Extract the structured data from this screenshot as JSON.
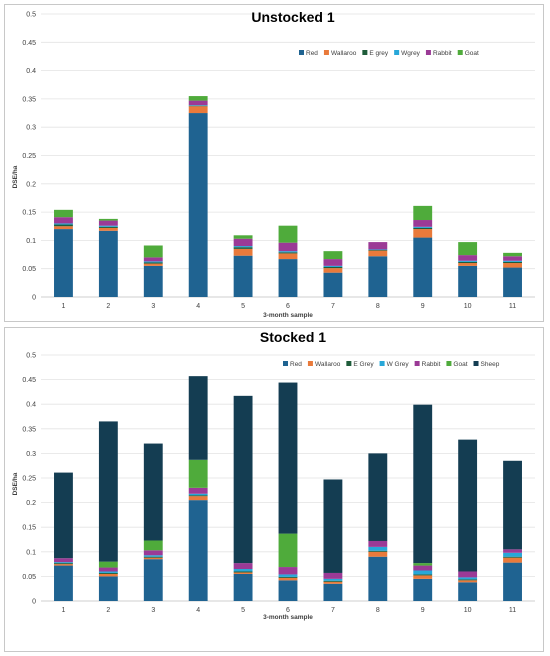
{
  "chart_data": [
    {
      "type": "bar",
      "stacked": true,
      "title": "Unstocked 1",
      "xlabel": "3-month sample",
      "ylabel": "DSE/ha",
      "ylim": [
        0,
        0.5
      ],
      "yticks": [
        "0",
        "0.05",
        "0.1",
        "0.15",
        "0.2",
        "0.25",
        "0.3",
        "0.35",
        "0.4",
        "0.45",
        "0.5"
      ],
      "grid": true,
      "legend_position": "top-right",
      "categories": [
        "1",
        "2",
        "3",
        "4",
        "5",
        "6",
        "7",
        "8",
        "9",
        "10",
        "11"
      ],
      "series": [
        {
          "name": "Red",
          "color": "#1f6391",
          "values": [
            0.12,
            0.117,
            0.055,
            0.325,
            0.073,
            0.067,
            0.043,
            0.072,
            0.105,
            0.055,
            0.052
          ]
        },
        {
          "name": "Wallaroo",
          "color": "#e97a3b",
          "values": [
            0.005,
            0.005,
            0.004,
            0.012,
            0.012,
            0.01,
            0.008,
            0.01,
            0.015,
            0.005,
            0.008
          ]
        },
        {
          "name": "E grey",
          "color": "#1e5c3a",
          "values": [
            0.003,
            0.002,
            0.002,
            0.001,
            0.003,
            0.002,
            0.002,
            0.001,
            0.002,
            0.002,
            0.002
          ]
        },
        {
          "name": "Wgrey",
          "color": "#27a7d8",
          "values": [
            0.002,
            0.002,
            0.002,
            0.001,
            0.002,
            0.002,
            0.002,
            0.001,
            0.002,
            0.002,
            0.002
          ]
        },
        {
          "name": "Rabbit",
          "color": "#9b3a96",
          "values": [
            0.011,
            0.009,
            0.007,
            0.008,
            0.013,
            0.015,
            0.012,
            0.013,
            0.012,
            0.01,
            0.008
          ]
        },
        {
          "name": "Goat",
          "color": "#4fab3b",
          "values": [
            0.013,
            0.003,
            0.021,
            0.008,
            0.006,
            0.03,
            0.014,
            0.0,
            0.025,
            0.023,
            0.006
          ]
        }
      ]
    },
    {
      "type": "bar",
      "stacked": true,
      "title": "Stocked 1",
      "xlabel": "3-month sample",
      "ylabel": "DSE/ha",
      "ylim": [
        0,
        0.5
      ],
      "yticks": [
        "0",
        "0.05",
        "0.1",
        "0.15",
        "0.2",
        "0.25",
        "0.3",
        "0.35",
        "0.4",
        "0.45",
        "0.5"
      ],
      "grid": true,
      "legend_position": "top-right",
      "categories": [
        "1",
        "2",
        "3",
        "4",
        "5",
        "6",
        "7",
        "8",
        "9",
        "10",
        "11"
      ],
      "series": [
        {
          "name": "Red",
          "color": "#1f6391",
          "values": [
            0.072,
            0.05,
            0.085,
            0.205,
            0.055,
            0.042,
            0.035,
            0.09,
            0.045,
            0.038,
            0.078
          ]
        },
        {
          "name": "Wallaroo",
          "color": "#e97a3b",
          "values": [
            0.003,
            0.005,
            0.003,
            0.008,
            0.003,
            0.005,
            0.004,
            0.01,
            0.007,
            0.004,
            0.01
          ]
        },
        {
          "name": "E Grey",
          "color": "#1e5c3a",
          "values": [
            0.002,
            0.002,
            0.002,
            0.002,
            0.002,
            0.002,
            0.002,
            0.002,
            0.002,
            0.002,
            0.002
          ]
        },
        {
          "name": "W Grey",
          "color": "#27a7d8",
          "values": [
            0.002,
            0.003,
            0.003,
            0.003,
            0.005,
            0.005,
            0.004,
            0.008,
            0.008,
            0.004,
            0.008
          ]
        },
        {
          "name": "Rabbit",
          "color": "#9b3a96",
          "values": [
            0.008,
            0.008,
            0.01,
            0.012,
            0.012,
            0.015,
            0.012,
            0.012,
            0.01,
            0.012,
            0.007
          ]
        },
        {
          "name": "Goat",
          "color": "#4fab3b",
          "values": [
            0.0,
            0.012,
            0.02,
            0.057,
            0.0,
            0.068,
            0.0,
            0.0,
            0.005,
            0.0,
            0.0
          ]
        },
        {
          "name": "Sheep",
          "color": "#143d52",
          "values": [
            0.174,
            0.285,
            0.197,
            0.17,
            0.34,
            0.307,
            0.19,
            0.178,
            0.322,
            0.268,
            0.18
          ]
        }
      ]
    }
  ]
}
